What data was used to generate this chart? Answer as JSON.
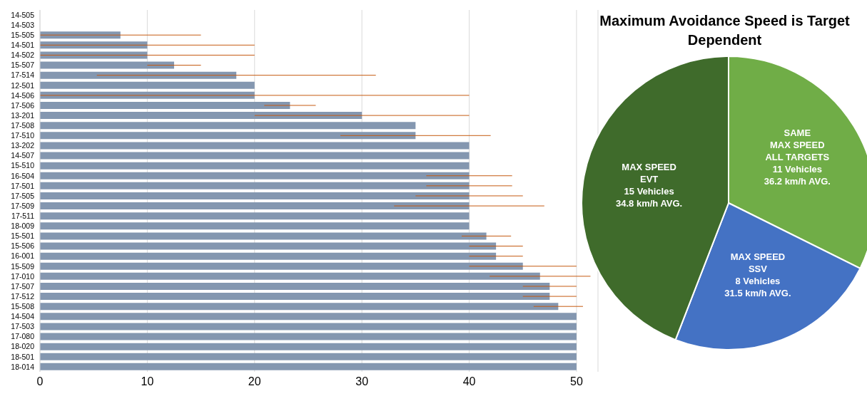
{
  "chart_data": [
    {
      "type": "bar",
      "orientation": "horizontal",
      "categories": [
        "14-505",
        "14-503",
        "15-505",
        "14-501",
        "14-502",
        "15-507",
        "17-514",
        "12-501",
        "14-506",
        "17-506",
        "13-201",
        "17-508",
        "17-510",
        "13-202",
        "14-507",
        "15-510",
        "16-504",
        "17-501",
        "17-505",
        "17-509",
        "17-511",
        "18-009",
        "15-501",
        "15-506",
        "16-001",
        "15-509",
        "17-010",
        "17-507",
        "17-512",
        "15-508",
        "14-504",
        "17-503",
        "17-080",
        "18-020",
        "18-501",
        "18-014"
      ],
      "values": [
        null,
        null,
        7.5,
        10,
        10,
        12.5,
        18.3,
        20,
        20,
        23.3,
        30,
        35,
        35,
        40,
        40,
        40,
        40,
        40,
        40,
        40,
        40,
        40,
        41.6,
        42.5,
        42.5,
        45,
        46.6,
        47.5,
        47.5,
        48.3,
        50,
        50,
        50,
        50,
        50,
        50
      ],
      "errors": [
        null,
        null,
        7.5,
        10,
        10,
        2.5,
        13,
        null,
        20,
        2.4,
        10,
        null,
        7,
        null,
        null,
        null,
        4,
        4,
        5,
        7,
        null,
        null,
        2.3,
        2.5,
        2.5,
        5,
        4.7,
        2.5,
        2.5,
        2.3,
        null,
        null,
        null,
        null,
        null,
        null
      ],
      "color": "#8497b0",
      "xlim": [
        0,
        52
      ],
      "xticks": [
        0,
        10,
        20,
        30,
        40,
        50
      ],
      "grid": "x"
    },
    {
      "type": "pie",
      "title": "Maximum Avoidance Speed is Target Dependent",
      "categories": [
        "SAME\nMAX SPEED\nALL TARGETS",
        "MAX SPEED\nSSV",
        "MAX SPEED\nEVT"
      ],
      "values": [
        11,
        8,
        15
      ],
      "value_labels": [
        "11 Vehicles\n36.2 km/h AVG.",
        "8 Vehicles\n31.5 km/h AVG.",
        "15 Vehicles\n34.8 km/h AVG."
      ],
      "colors": [
        "#70ad47",
        "#4472c4",
        "#3f6b2b"
      ]
    }
  ]
}
